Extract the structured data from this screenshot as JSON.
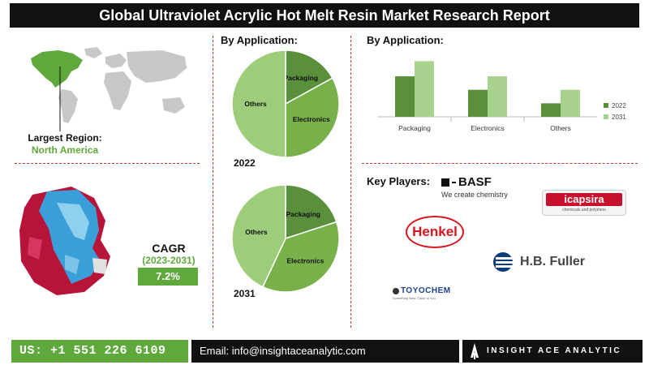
{
  "title": "Global Ultraviolet Acrylic Hot Melt Resin Market Research Report",
  "region": {
    "label": "Largest Region:",
    "value": "North America"
  },
  "cagr": {
    "label": "CAGR",
    "period": "(2023-2031)",
    "value": "7.2%"
  },
  "pie_section_title": "By Application:",
  "bar_section_title": "By Application:",
  "key_players_title": "Key Players:",
  "players": {
    "basf": "BASF",
    "basf_tagline": "We create chemistry",
    "icapsira": "icapsira",
    "icapsira_tagline": "chemicals and polymers",
    "henkel": "Henkel",
    "hbfuller": "H.B. Fuller",
    "toyochem": "TOYOCHEM",
    "toyochem_tagline": "Something New, Close to You"
  },
  "footer": {
    "phone": "US: +1 551 226 6109",
    "email": "Email: info@insightaceanalytic.com",
    "brand": "INSIGHT ACE ANALYTIC"
  },
  "colors": {
    "dark_green": "#5a8f3c",
    "mid_green": "#78b04a",
    "light_green": "#9dcc7a",
    "accent_red": "#c0392b",
    "map_grey": "#c8c8c8"
  },
  "chart_data": [
    {
      "type": "pie",
      "year_label": "2022",
      "categories": [
        "Packaging",
        "Electronics",
        "Others"
      ],
      "values": [
        17,
        33,
        50
      ]
    },
    {
      "type": "pie",
      "year_label": "2031",
      "categories": [
        "Packaging",
        "Electronics",
        "Others"
      ],
      "values": [
        20,
        37,
        43
      ]
    },
    {
      "type": "bar",
      "categories": [
        "Packaging",
        "Electronics",
        "Others"
      ],
      "series": [
        {
          "name": "2022",
          "values": [
            48,
            32,
            16
          ]
        },
        {
          "name": "2031",
          "values": [
            66,
            48,
            32
          ]
        }
      ],
      "ylim": [
        0,
        75
      ],
      "legend_position": "right"
    }
  ]
}
